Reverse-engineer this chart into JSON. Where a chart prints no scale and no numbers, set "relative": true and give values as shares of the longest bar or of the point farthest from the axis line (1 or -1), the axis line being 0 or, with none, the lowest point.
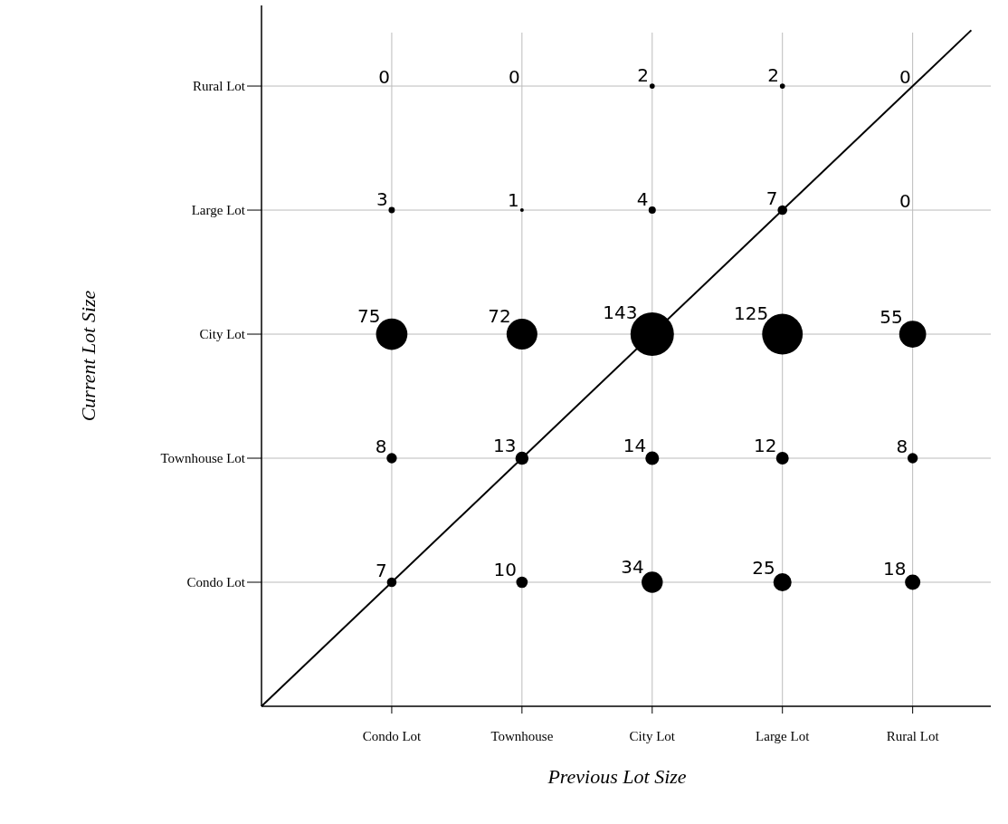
{
  "chart_data": [
    {
      "type": "heatmap",
      "xlabel": "Previous Lot Size",
      "ylabel": "Current Lot Size",
      "categories": [
        "Condo Lot",
        "Townhouse",
        "City Lot",
        "Large Lot",
        "Rural Lot"
      ],
      "y_categories": [
        "Rural Lot",
        "Large Lot",
        "City Lot",
        "Townhouse Lot",
        "Condo Lot"
      ],
      "cells": [
        [
          0,
          0,
          2,
          2,
          0
        ],
        [
          3,
          1,
          4,
          7,
          0
        ],
        [
          75,
          72,
          143,
          125,
          55
        ],
        [
          8,
          13,
          14,
          12,
          8
        ],
        [
          7,
          10,
          34,
          25,
          18
        ]
      ],
      "data_labels": true,
      "grid": true
    },
    {
      "type": "line",
      "relative": true,
      "categories": [
        null,
        null
      ],
      "values": [
        0,
        1
      ],
      "color": "#000000",
      "line_style": "solid"
    }
  ]
}
